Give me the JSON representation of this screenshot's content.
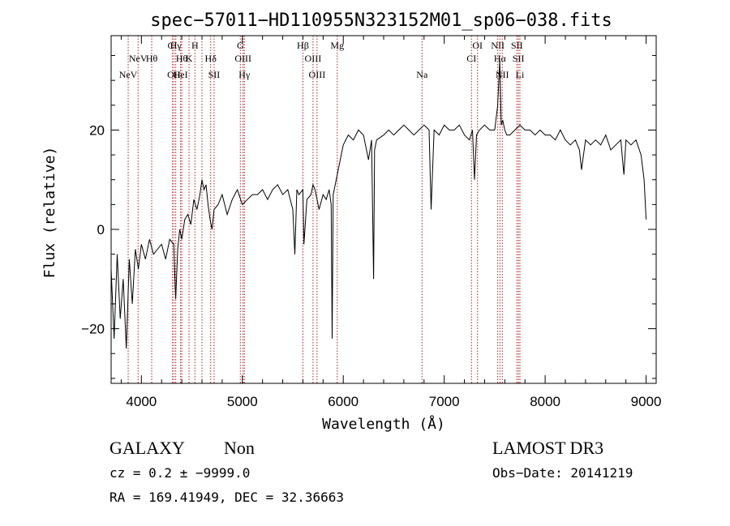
{
  "chart_data": {
    "type": "line",
    "title": "spec−57011−HD110955N323152M01_sp06−038.fits",
    "xlabel": "Wavelength (Å)",
    "ylabel": "Flux (relative)",
    "xlim": [
      3700,
      9100
    ],
    "ylim": [
      -31,
      39
    ],
    "xticks": [
      4000,
      5000,
      6000,
      7000,
      8000,
      9000
    ],
    "yticks": [
      -20,
      0,
      20
    ],
    "ytick_labels": [
      "−20",
      "0",
      "20"
    ],
    "series": [
      {
        "name": "spectrum",
        "x": [
          3700,
          3730,
          3760,
          3790,
          3820,
          3850,
          3880,
          3910,
          3940,
          3970,
          4000,
          4040,
          4080,
          4120,
          4160,
          4200,
          4240,
          4280,
          4320,
          4340,
          4360,
          4380,
          4400,
          4430,
          4460,
          4490,
          4520,
          4550,
          4580,
          4600,
          4620,
          4640,
          4660,
          4680,
          4700,
          4720,
          4760,
          4800,
          4850,
          4900,
          4950,
          5000,
          5050,
          5100,
          5150,
          5200,
          5250,
          5300,
          5350,
          5400,
          5450,
          5500,
          5520,
          5540,
          5560,
          5600,
          5610,
          5640,
          5680,
          5700,
          5720,
          5760,
          5800,
          5830,
          5860,
          5880,
          5890,
          5900,
          5920,
          5950,
          6000,
          6050,
          6100,
          6150,
          6200,
          6250,
          6280,
          6300,
          6310,
          6330,
          6400,
          6450,
          6500,
          6550,
          6600,
          6650,
          6700,
          6750,
          6800,
          6850,
          6870,
          6900,
          6950,
          7000,
          7050,
          7100,
          7150,
          7200,
          7250,
          7280,
          7300,
          7320,
          7350,
          7400,
          7450,
          7500,
          7530,
          7550,
          7565,
          7580,
          7600,
          7620,
          7650,
          7700,
          7750,
          7800,
          7850,
          7900,
          7950,
          8000,
          8050,
          8100,
          8150,
          8200,
          8250,
          8300,
          8340,
          8360,
          8400,
          8450,
          8500,
          8550,
          8600,
          8650,
          8700,
          8750,
          8780,
          8800,
          8850,
          8900,
          8950,
          8980,
          9000
        ],
        "y": [
          -8,
          -22,
          -5,
          -18,
          -10,
          -24,
          -6,
          -15,
          -4,
          -8,
          -3,
          -6,
          -2,
          -5,
          -4,
          -3,
          -6,
          -2,
          -3,
          -14,
          -4,
          0,
          -2,
          2,
          3,
          1,
          6,
          4,
          7,
          10,
          8,
          9,
          5,
          2,
          0,
          4,
          5,
          7,
          3,
          6,
          8,
          5,
          6,
          7,
          7,
          8,
          6,
          8,
          9,
          7,
          8,
          4,
          -5,
          8,
          7,
          8,
          -3,
          6,
          7,
          9,
          8,
          4,
          7,
          6,
          8,
          5,
          -22,
          7,
          9,
          12,
          17,
          19,
          18,
          20,
          19,
          14,
          18,
          -10,
          16,
          18,
          19,
          20,
          19,
          20,
          21,
          20,
          19,
          20,
          21,
          20,
          4,
          20,
          19,
          21,
          20,
          20,
          21,
          19,
          18,
          20,
          10,
          19,
          20,
          21,
          20,
          20,
          25,
          34,
          21,
          22,
          20,
          19,
          19,
          20,
          21,
          20,
          20,
          19,
          20,
          19,
          19,
          18,
          20,
          18,
          17,
          18,
          16,
          12,
          18,
          17,
          18,
          17,
          19,
          16,
          17,
          18,
          11,
          18,
          17,
          18,
          15,
          10,
          2
        ]
      }
    ],
    "lines": [
      {
        "w": 3869,
        "t": "NeV",
        "r": 2
      },
      {
        "w": 3967,
        "t": "NeV",
        "r": 1
      },
      {
        "w": 4307,
        "t": "CI",
        "r": 0
      },
      {
        "w": 4322,
        "t": "OII",
        "r": 2
      },
      {
        "w": 4340,
        "t": "Hγ",
        "r": 0
      },
      {
        "w": 4388,
        "t": "HeI",
        "r": 2
      },
      {
        "w": 4102,
        "t": "Hθ",
        "r": 1
      },
      {
        "w": 4400,
        "t": "Hθ",
        "r": 1
      },
      {
        "w": 4472,
        "t": "K",
        "r": 1
      },
      {
        "w": 4530,
        "t": "H",
        "r": 0
      },
      {
        "w": 4600,
        "t": "",
        "r": -1
      },
      {
        "w": 4686,
        "t": "Hδ",
        "r": 1
      },
      {
        "w": 4720,
        "t": "SII",
        "r": 2
      },
      {
        "w": 4980,
        "t": "G",
        "r": 0
      },
      {
        "w": 5007,
        "t": "OIII",
        "r": 1
      },
      {
        "w": 5020,
        "t": "Hγ",
        "r": 2
      },
      {
        "w": 5600,
        "t": "Hβ",
        "r": 0
      },
      {
        "w": 5700,
        "t": "OIII",
        "r": 1
      },
      {
        "w": 5740,
        "t": "OIII",
        "r": 2
      },
      {
        "w": 5940,
        "t": "Mg",
        "r": 0
      },
      {
        "w": 6780,
        "t": "Na",
        "r": 2
      },
      {
        "w": 7270,
        "t": "CI",
        "r": 1
      },
      {
        "w": 7330,
        "t": "OI",
        "r": 0
      },
      {
        "w": 7530,
        "t": "NII",
        "r": 0
      },
      {
        "w": 7552,
        "t": "Hα",
        "r": 1
      },
      {
        "w": 7575,
        "t": "NII",
        "r": 2
      },
      {
        "w": 7720,
        "t": "SII",
        "r": 0
      },
      {
        "w": 7735,
        "t": "SII",
        "r": 1
      },
      {
        "w": 7750,
        "t": "Li",
        "r": 2
      }
    ]
  },
  "info": {
    "object_class": "GALAXY",
    "subclass": "Non",
    "survey": "LAMOST DR3",
    "cz": "cz = 0.2 ± −9999.0",
    "obs_date": "Obs−Date: 20141219",
    "coords": "RA = 169.41949, DEC =  32.36663"
  },
  "colors": {
    "spectrum": "#000000",
    "line_marker": "#b02020"
  }
}
